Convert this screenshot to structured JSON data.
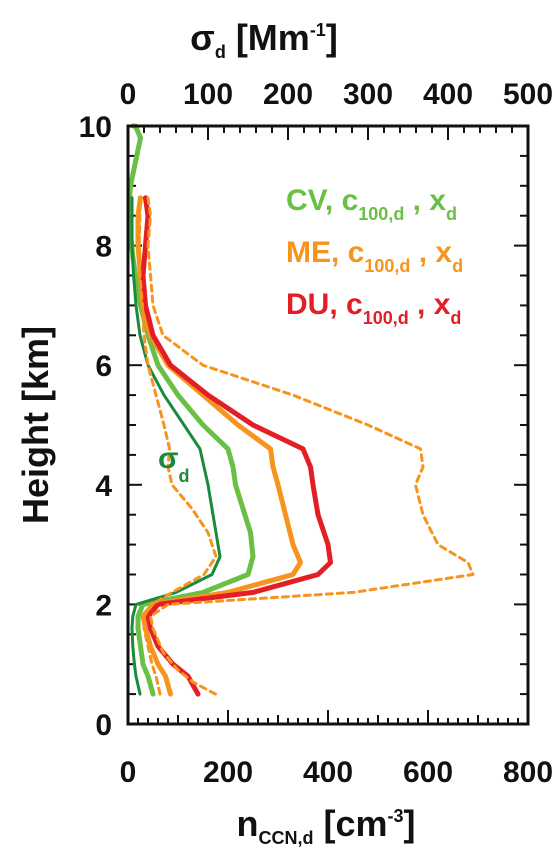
{
  "chart_data": {
    "type": "line",
    "xlabel": {
      "main": "n",
      "sub": "CCN,d",
      "unit_pre": " [cm",
      "sup": "-3",
      "unit_post": "]"
    },
    "x2label": {
      "main": "σ",
      "sub": "d",
      "unit_pre": " [Mm",
      "sup": "-1",
      "unit_post": "]"
    },
    "ylabel": "Height [km]",
    "xlim": [
      0,
      800
    ],
    "x2lim": [
      0,
      500
    ],
    "ylim": [
      0,
      10
    ],
    "x_ticks": [
      "0",
      "200",
      "400",
      "600",
      "800"
    ],
    "x2_ticks": [
      "0",
      "100",
      "200",
      "300",
      "400",
      "500"
    ],
    "y_ticks": [
      "0",
      "2",
      "4",
      "6",
      "8",
      "10"
    ],
    "legend": [
      {
        "label": "CV, c",
        "sub": "100,d",
        "mid": " , x",
        "sub2": "d",
        "color": "#6abf45"
      },
      {
        "label": "ME, c",
        "sub": "100,d",
        "mid": " , x",
        "sub2": "d",
        "color": "#f7941d"
      },
      {
        "label": "DU, c",
        "sub": "100,d",
        "mid": " , x",
        "sub2": "d",
        "color": "#e31e24"
      }
    ],
    "annotation": {
      "text": "σ",
      "sub": "d",
      "color": "#1a8a3c"
    },
    "series": [
      {
        "key": "CV",
        "color": "#6abf45",
        "width": 5,
        "dash": "",
        "axis": "x",
        "x": [
          50,
          40,
          30,
          25,
          20,
          20,
          30,
          150,
          240,
          250,
          245,
          230,
          215,
          210,
          200,
          150,
          100,
          60,
          40,
          25,
          15,
          10,
          5,
          3,
          3,
          5,
          10,
          15,
          20,
          25,
          20,
          15,
          10
        ],
        "y": [
          0.5,
          0.8,
          1.0,
          1.3,
          1.6,
          1.8,
          2.0,
          2.2,
          2.5,
          2.8,
          3.2,
          3.6,
          4.0,
          4.3,
          4.6,
          5.0,
          5.5,
          6.0,
          6.5,
          7.0,
          7.5,
          7.8,
          8.2,
          8.5,
          8.8,
          9.0,
          9.2,
          9.4,
          9.6,
          9.8,
          9.9,
          10.0,
          10.0
        ]
      },
      {
        "key": "ME",
        "color": "#f7941d",
        "width": 5,
        "dash": "",
        "axis": "x",
        "x": [
          85,
          75,
          60,
          45,
          35,
          30,
          50,
          200,
          330,
          345,
          330,
          315,
          300,
          290,
          285,
          220,
          150,
          80,
          45,
          30,
          25,
          20,
          20,
          25
        ],
        "y": [
          0.5,
          0.8,
          1.0,
          1.3,
          1.6,
          1.8,
          2.0,
          2.2,
          2.5,
          2.7,
          3.0,
          3.5,
          4.0,
          4.3,
          4.6,
          5.0,
          5.5,
          6.0,
          6.5,
          7.0,
          7.5,
          8.0,
          8.5,
          8.8
        ]
      },
      {
        "key": "DU",
        "color": "#e31e24",
        "width": 5,
        "dash": "",
        "axis": "x",
        "x": [
          140,
          120,
          90,
          60,
          45,
          40,
          60,
          250,
          380,
          405,
          400,
          380,
          370,
          365,
          350,
          250,
          160,
          85,
          50,
          35,
          30,
          35,
          40,
          35
        ],
        "y": [
          0.5,
          0.8,
          1.0,
          1.3,
          1.6,
          1.8,
          2.0,
          2.2,
          2.5,
          2.7,
          3.0,
          3.5,
          4.0,
          4.3,
          4.6,
          5.0,
          5.5,
          6.0,
          6.5,
          7.0,
          7.5,
          8.0,
          8.5,
          8.8
        ]
      },
      {
        "key": "ME-dashed",
        "color": "#f7941d",
        "width": 3,
        "dash": "6,5",
        "axis": "x",
        "x": [
          175,
          130,
          100,
          70,
          50,
          45,
          80,
          450,
          690,
          680,
          620,
          590,
          575,
          590,
          585,
          480,
          330,
          150,
          70,
          50,
          45,
          40,
          45,
          40
        ],
        "y": [
          0.5,
          0.7,
          0.9,
          1.2,
          1.6,
          1.8,
          2.0,
          2.2,
          2.5,
          2.7,
          3.0,
          3.5,
          4.0,
          4.3,
          4.6,
          5.0,
          5.5,
          6.0,
          6.5,
          7.0,
          7.5,
          8.0,
          8.5,
          8.8
        ]
      },
      {
        "key": "sigma",
        "color": "#1a8a3c",
        "width": 3,
        "dash": "",
        "axis": "x2",
        "x": [
          15,
          10,
          8,
          6,
          5,
          6,
          10,
          60,
          105,
          115,
          110,
          105,
          100,
          95,
          90,
          70,
          45,
          25,
          15,
          10,
          7,
          5,
          5,
          5
        ],
        "y": [
          0.5,
          0.8,
          1.0,
          1.3,
          1.6,
          1.8,
          2.0,
          2.2,
          2.5,
          2.8,
          3.2,
          3.6,
          4.0,
          4.3,
          4.6,
          5.0,
          5.5,
          6.0,
          6.5,
          7.0,
          7.5,
          8.0,
          8.5,
          8.8
        ]
      },
      {
        "key": "sigma-dashed",
        "color": "#f7941d",
        "width": 3,
        "dash": "6,5",
        "axis": "x2",
        "x": [
          40,
          35,
          30,
          25,
          20,
          20,
          30,
          55,
          95,
          110,
          100,
          80,
          55,
          50,
          52,
          45,
          35,
          25,
          20,
          18,
          15,
          14,
          15,
          14
        ],
        "y": [
          0.5,
          0.8,
          1.0,
          1.3,
          1.6,
          1.8,
          2.0,
          2.2,
          2.5,
          2.8,
          3.2,
          3.6,
          4.0,
          4.3,
          4.6,
          5.0,
          5.5,
          6.0,
          6.5,
          7.0,
          7.5,
          8.0,
          8.5,
          8.8
        ]
      }
    ]
  }
}
